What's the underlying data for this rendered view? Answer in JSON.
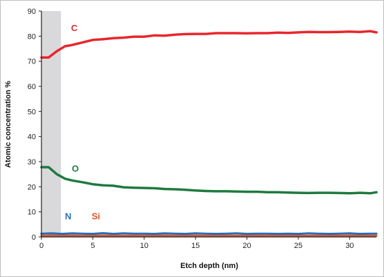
{
  "chart_data": {
    "type": "line",
    "title": "",
    "xlabel": "Etch depth (nm)",
    "ylabel": "Atomic concentration %",
    "xlim": [
      0,
      32.6
    ],
    "ylim": [
      0,
      90
    ],
    "xticks": [
      0,
      5,
      10,
      15,
      20,
      25,
      30
    ],
    "yticks": [
      0,
      10,
      20,
      30,
      40,
      50,
      60,
      70,
      80,
      90
    ],
    "grid": false,
    "shaded_region": {
      "x": [
        0,
        1.9
      ],
      "color": "#d9d9db"
    },
    "series": [
      {
        "name": "C",
        "color": "#e8262c",
        "x": [
          0,
          0.7,
          1.5,
          2.3,
          3,
          4,
          5,
          6,
          7,
          8,
          9,
          10,
          11,
          12,
          13,
          14,
          15,
          16,
          17,
          18,
          19,
          20,
          21,
          22,
          23,
          24,
          25,
          26,
          27,
          28,
          29,
          30,
          31,
          32,
          32.6
        ],
        "y": [
          71.5,
          71.5,
          74,
          76,
          76.5,
          77.5,
          78.5,
          78.8,
          79.2,
          79.4,
          79.8,
          79.8,
          80.3,
          80.2,
          80.6,
          80.8,
          80.9,
          80.9,
          81.2,
          81.2,
          81.2,
          81.1,
          81.2,
          81.2,
          81.4,
          81.3,
          81.5,
          81.7,
          81.6,
          81.6,
          81.7,
          81.8,
          81.7,
          82.0,
          81.5
        ]
      },
      {
        "name": "O",
        "color": "#1f7a3f",
        "x": [
          0,
          0.7,
          1.5,
          2.3,
          3,
          4,
          5,
          6,
          7,
          8,
          9,
          10,
          11,
          12,
          13,
          14,
          15,
          16,
          17,
          18,
          19,
          20,
          21,
          22,
          23,
          24,
          25,
          26,
          27,
          28,
          29,
          30,
          31,
          32,
          32.6
        ],
        "y": [
          27.8,
          27.8,
          25,
          23.2,
          22.5,
          21.8,
          21,
          20.6,
          20.4,
          19.8,
          19.6,
          19.5,
          19.4,
          19.1,
          19.0,
          18.8,
          18.5,
          18.3,
          18.2,
          18.2,
          18.1,
          18.0,
          18.0,
          17.8,
          17.8,
          17.7,
          17.6,
          17.5,
          17.6,
          17.6,
          17.5,
          17.4,
          17.6,
          17.4,
          17.8
        ]
      },
      {
        "name": "N",
        "color": "#2a6fb6",
        "x": [
          0,
          1,
          2,
          3,
          4,
          5,
          6,
          7,
          8,
          9,
          10,
          11,
          12,
          13,
          14,
          15,
          16,
          17,
          18,
          19,
          20,
          21,
          22,
          23,
          24,
          25,
          26,
          27,
          28,
          29,
          30,
          31,
          32,
          32.6
        ],
        "y": [
          1.3,
          1.4,
          1.2,
          1.4,
          1.3,
          1.2,
          1.5,
          1.2,
          1.4,
          1.3,
          1.3,
          1.2,
          1.4,
          1.3,
          1.2,
          1.4,
          1.3,
          1.2,
          1.3,
          1.4,
          1.2,
          1.3,
          1.3,
          1.2,
          1.3,
          1.2,
          1.4,
          1.3,
          1.2,
          1.3,
          1.4,
          1.2,
          1.3,
          1.3
        ]
      },
      {
        "name": "Si",
        "color": "#e2552b",
        "x": [
          0,
          1,
          2,
          3,
          4,
          5,
          6,
          7,
          8,
          9,
          10,
          11,
          12,
          13,
          14,
          15,
          16,
          17,
          18,
          19,
          20,
          21,
          22,
          23,
          24,
          25,
          26,
          27,
          28,
          29,
          30,
          31,
          32,
          32.6
        ],
        "y": [
          0.4,
          0.5,
          0.4,
          0.5,
          0.4,
          0.4,
          0.5,
          0.4,
          0.4,
          0.5,
          0.4,
          0.4,
          0.5,
          0.4,
          0.4,
          0.5,
          0.4,
          0.4,
          0.5,
          0.4,
          0.4,
          0.5,
          0.4,
          0.4,
          0.5,
          0.4,
          0.4,
          0.5,
          0.4,
          0.4,
          0.5,
          0.4,
          0.4,
          0.4
        ]
      }
    ],
    "annotations": [
      {
        "text": "C",
        "series": "C",
        "x": 3.2,
        "y": 82,
        "color": "#e8262c"
      },
      {
        "text": "O",
        "series": "O",
        "x": 3.3,
        "y": 26,
        "color": "#1f7a3f"
      },
      {
        "text": "N",
        "series": "N",
        "x": 2.6,
        "y": 7,
        "color": "#2a6fb6"
      },
      {
        "text": "Si",
        "series": "Si",
        "x": 5.3,
        "y": 7,
        "color": "#e2552b"
      }
    ]
  }
}
